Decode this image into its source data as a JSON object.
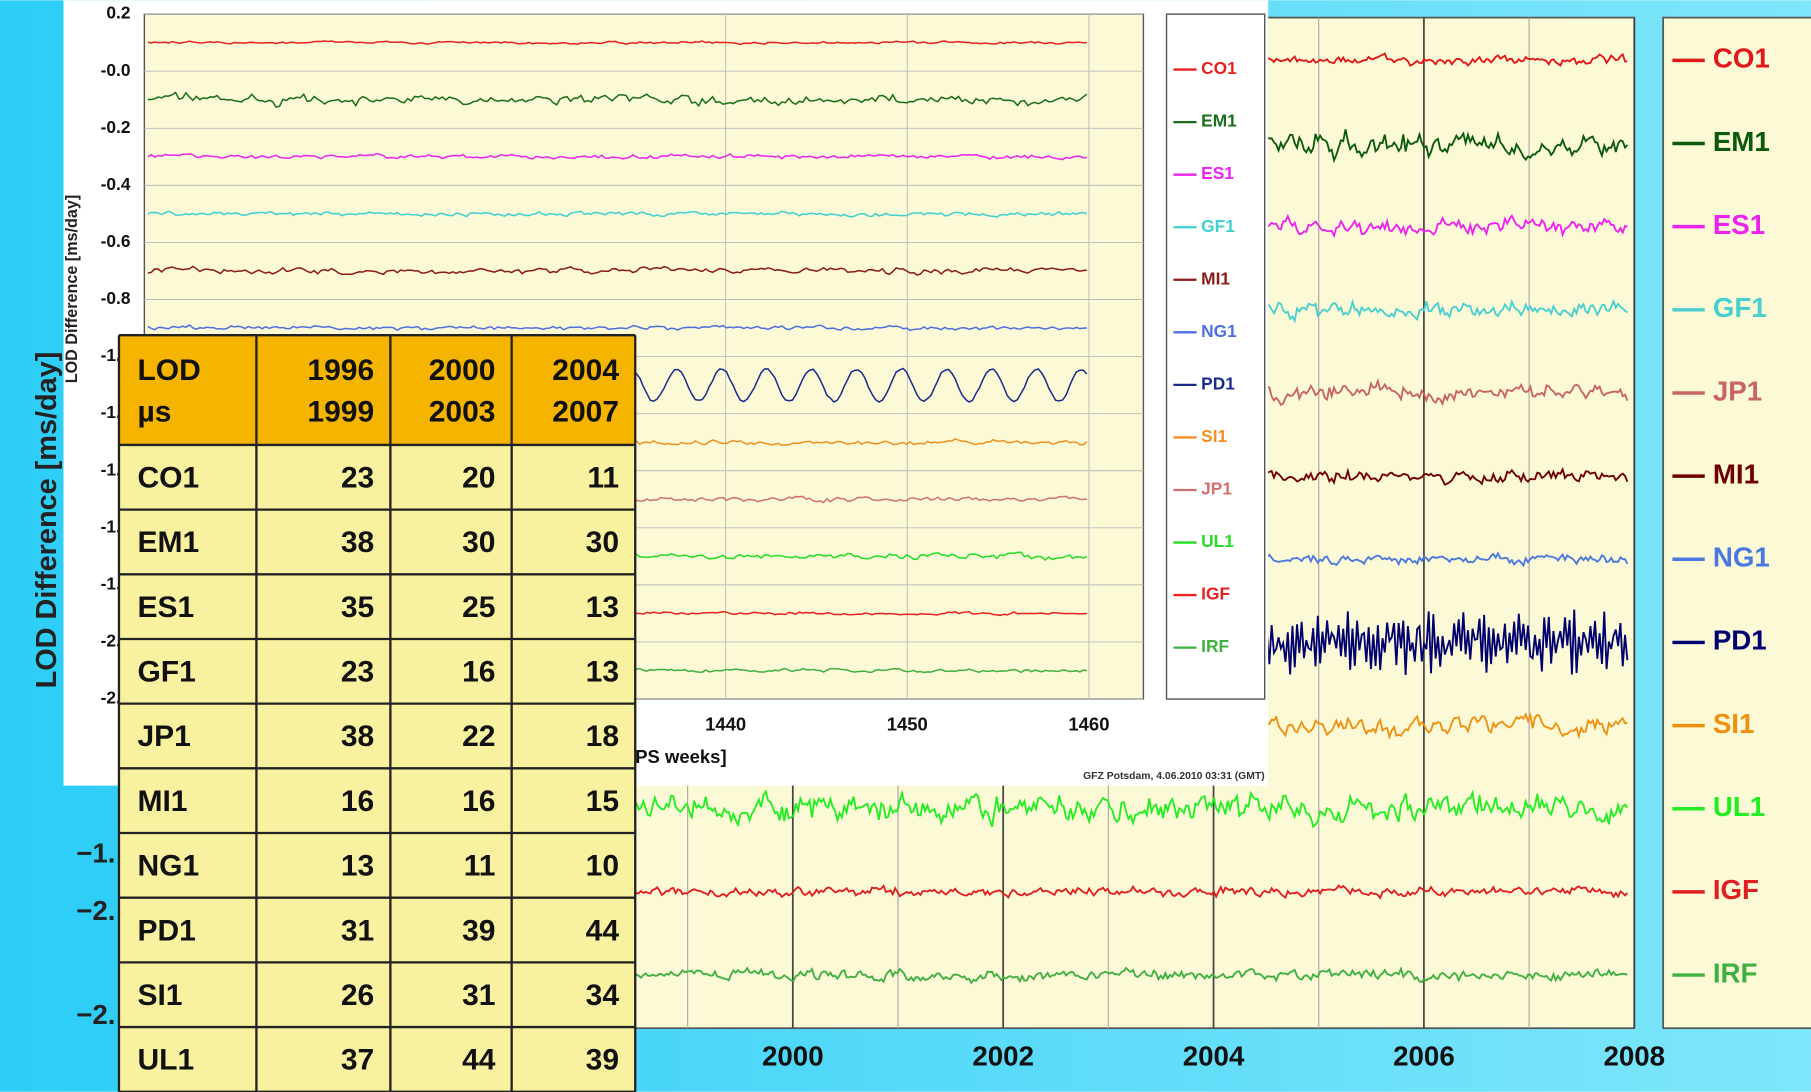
{
  "back_chart": {
    "y_label": "LOD Difference [ms/day]",
    "ytick_labels_visible": [
      "−1.",
      "−2.",
      "−2."
    ],
    "xlim": [
      1994,
      2008
    ],
    "xticks": [
      2000,
      2002,
      2004,
      2006,
      2008
    ],
    "series": [
      {
        "name": "CO1",
        "color": "#e01818"
      },
      {
        "name": "EM1",
        "color": "#0a5a0a"
      },
      {
        "name": "ES1",
        "color": "#ee22ee"
      },
      {
        "name": "GF1",
        "color": "#48d0d0"
      },
      {
        "name": "JP1",
        "color": "#c86464"
      },
      {
        "name": "MI1",
        "color": "#700000"
      },
      {
        "name": "NG1",
        "color": "#4a78e0"
      },
      {
        "name": "PD1",
        "color": "#000070"
      },
      {
        "name": "SI1",
        "color": "#f09010"
      },
      {
        "name": "UL1",
        "color": "#22ee22"
      },
      {
        "name": "IGF",
        "color": "#e02020"
      },
      {
        "name": "IRF",
        "color": "#40b040"
      }
    ]
  },
  "front_chart": {
    "y_label": "LOD Difference [ms/day]",
    "x_label_visible": "PS weeks]",
    "footer": "GFZ Potsdam, 4.06.2010 03:31 (GMT)",
    "ylim": [
      -2.2,
      0.2
    ],
    "yticks": [
      0.2,
      {
        "value": 0,
        "label": "-0.0"
      },
      -0.2,
      -0.4,
      -0.6,
      -0.8,
      {
        "value": -1,
        "label": "-1.0"
      },
      -1.2,
      -1.4,
      -1.6,
      -1.8,
      {
        "value": -2,
        "label": "-2.0"
      },
      -2.2
    ],
    "xlim": [
      1408,
      1463
    ],
    "xticks": [
      1440,
      1450,
      1460
    ],
    "grid": true,
    "series": [
      {
        "name": "CO1",
        "color": "#e82020"
      },
      {
        "name": "EM1",
        "color": "#1a6e1a"
      },
      {
        "name": "ES1",
        "color": "#ee22ee"
      },
      {
        "name": "GF1",
        "color": "#40d0d0"
      },
      {
        "name": "MI1",
        "color": "#8b1a1a"
      },
      {
        "name": "NG1",
        "color": "#4d6fe0"
      },
      {
        "name": "PD1",
        "color": "#1a2a8a"
      },
      {
        "name": "SI1",
        "color": "#f09020"
      },
      {
        "name": "JP1",
        "color": "#d07070"
      },
      {
        "name": "UL1",
        "color": "#22dd22"
      },
      {
        "name": "IGF",
        "color": "#e82020"
      },
      {
        "name": "IRF",
        "color": "#40b040"
      }
    ]
  },
  "table": {
    "header": [
      [
        "LOD",
        "µs"
      ],
      [
        "1996",
        "1999"
      ],
      [
        "2000",
        "2003"
      ],
      [
        "2004",
        "2007"
      ]
    ],
    "rows": [
      [
        "CO1",
        23,
        20,
        11
      ],
      [
        "EM1",
        38,
        30,
        30
      ],
      [
        "ES1",
        35,
        25,
        13
      ],
      [
        "GF1",
        23,
        16,
        13
      ],
      [
        "JP1",
        38,
        22,
        18
      ],
      [
        "MI1",
        16,
        16,
        15
      ],
      [
        "NG1",
        13,
        11,
        10
      ],
      [
        "PD1",
        31,
        39,
        44
      ],
      [
        "SI1",
        26,
        31,
        34
      ],
      [
        "UL1",
        37,
        44,
        39
      ]
    ]
  }
}
